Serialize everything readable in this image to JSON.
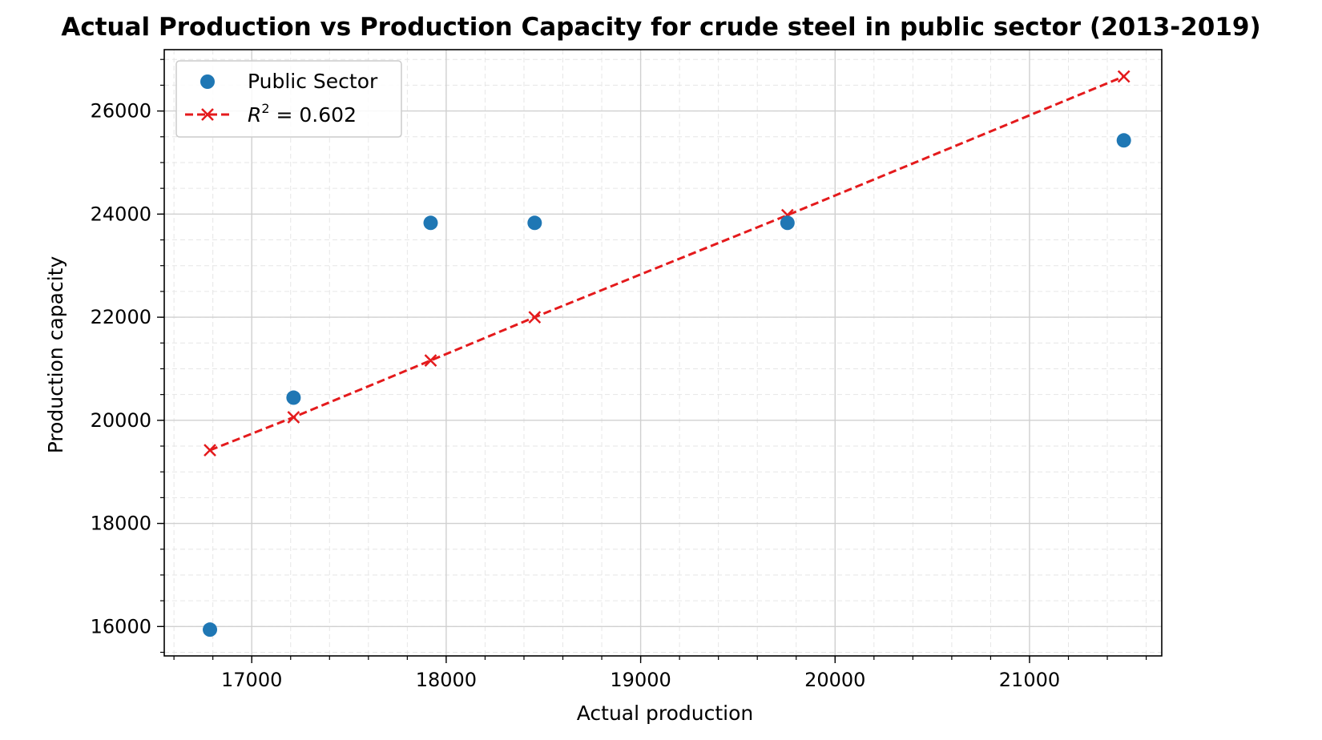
{
  "chart_data": {
    "type": "scatter",
    "title": "Actual Production vs Production Capacity for crude steel in public sector (2013-2019)",
    "xlabel": "Actual production",
    "ylabel": "Production capacity",
    "xlim": [
      16550,
      21680
    ],
    "ylim": [
      15430,
      27190
    ],
    "xticks": [
      17000,
      18000,
      19000,
      20000,
      21000
    ],
    "yticks": [
      16000,
      18000,
      20000,
      22000,
      24000,
      26000
    ],
    "xticklabels": [
      "17000",
      "18000",
      "19000",
      "20000",
      "21000"
    ],
    "yticklabels": [
      "16000",
      "18000",
      "20000",
      "22000",
      "24000",
      "26000"
    ],
    "grid": true,
    "minor_grid": true,
    "legend_position": "upper-left",
    "series": [
      {
        "name": "Public Sector",
        "kind": "scatter",
        "color": "#1f77b4",
        "x": [
          16785,
          17215,
          17920,
          18455,
          19755,
          21485
        ],
        "y": [
          15940,
          20440,
          23830,
          23830,
          23830,
          25430
        ]
      },
      {
        "name": "$R^2 = 0.602$",
        "kind": "fit-line",
        "color": "#e41a1c",
        "x": [
          16785,
          17215,
          17920,
          18455,
          19755,
          21485
        ],
        "y": [
          19420,
          20060,
          21160,
          22000,
          23980,
          26670
        ]
      }
    ],
    "legend": {
      "scatter_label": "Public Sector",
      "fit_label_prefix": "R",
      "fit_label_sup": "2",
      "fit_label_suffix": " = 0.602"
    }
  }
}
